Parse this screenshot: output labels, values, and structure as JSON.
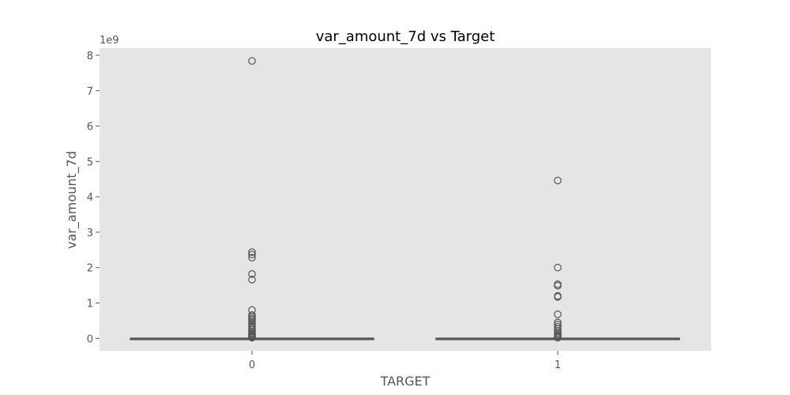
{
  "chart_data": {
    "type": "box",
    "title": "var_amount_7d vs Target",
    "xlabel": "TARGET",
    "ylabel": "var_amount_7d",
    "y_multiplier_label": "1e9",
    "categories": [
      "0",
      "1"
    ],
    "y_ticks": [
      0,
      1,
      2,
      3,
      4,
      5,
      6,
      7,
      8
    ],
    "ylim": [
      -0.35,
      8.2
    ],
    "grid": false,
    "colors": {
      "plot_background": "#e5e5e5",
      "box_edge": "#555555",
      "outlier_edge": "#555555"
    },
    "boxes": [
      {
        "category": "0",
        "q1": 0.0,
        "median": 0.0,
        "q3": 0.0,
        "whisker_low": 0.0,
        "whisker_high": 0.0,
        "outliers": [
          7.84,
          2.44,
          2.37,
          2.28,
          1.82,
          1.66,
          0.8,
          0.66,
          0.62,
          0.57,
          0.53,
          0.48,
          0.42,
          0.37,
          0.33,
          0.28,
          0.24,
          0.19,
          0.15,
          0.12,
          0.09,
          0.06,
          0.04,
          0.02
        ]
      },
      {
        "category": "1",
        "q1": 0.0,
        "median": 0.0,
        "q3": 0.0,
        "whisker_low": 0.0,
        "whisker_high": 0.0,
        "outliers": [
          4.46,
          2.0,
          1.53,
          1.49,
          1.2,
          1.17,
          0.68,
          0.45,
          0.39,
          0.33,
          0.27,
          0.21,
          0.16,
          0.12,
          0.08,
          0.05,
          0.02
        ]
      }
    ]
  }
}
